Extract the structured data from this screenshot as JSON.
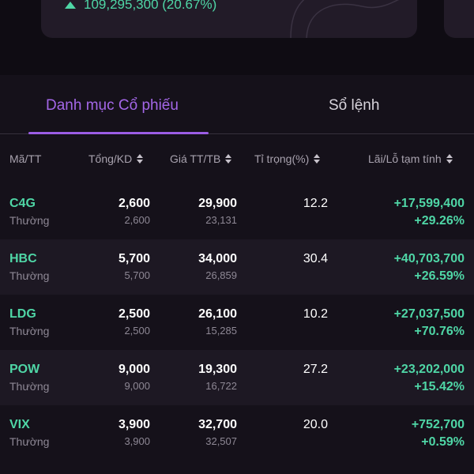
{
  "summary": {
    "value_text": "109,295,300 (20.67%)"
  },
  "tabs": [
    {
      "label": "Danh mục Cổ phiếu",
      "active": true
    },
    {
      "label": "Sổ lệnh",
      "active": false
    }
  ],
  "table": {
    "headers": {
      "code": "Mã/TT",
      "qty": "Tổng/KD",
      "price": "Giá TT/TB",
      "weight": "Tỉ trọng(%)",
      "pl": "Lãi/Lỗ tạm tính"
    },
    "rows": [
      {
        "code": "C4G",
        "type": "Thường",
        "qty_total": "2,600",
        "qty_avail": "2,600",
        "price_mkt": "29,900",
        "price_avg": "23,131",
        "weight": "12.2",
        "pl_value": "+17,599,400",
        "pl_pct": "+29.26%"
      },
      {
        "code": "HBC",
        "type": "Thường",
        "qty_total": "5,700",
        "qty_avail": "5,700",
        "price_mkt": "34,000",
        "price_avg": "26,859",
        "weight": "30.4",
        "pl_value": "+40,703,700",
        "pl_pct": "+26.59%"
      },
      {
        "code": "LDG",
        "type": "Thường",
        "qty_total": "2,500",
        "qty_avail": "2,500",
        "price_mkt": "26,100",
        "price_avg": "15,285",
        "weight": "10.2",
        "pl_value": "+27,037,500",
        "pl_pct": "+70.76%"
      },
      {
        "code": "POW",
        "type": "Thường",
        "qty_total": "9,000",
        "qty_avail": "9,000",
        "price_mkt": "19,300",
        "price_avg": "16,722",
        "weight": "27.2",
        "pl_value": "+23,202,000",
        "pl_pct": "+15.42%"
      },
      {
        "code": "VIX",
        "type": "Thường",
        "qty_total": "3,900",
        "qty_avail": "3,900",
        "price_mkt": "32,700",
        "price_avg": "32,507",
        "weight": "20.0",
        "pl_value": "+752,700",
        "pl_pct": "+0.59%"
      }
    ]
  },
  "colors": {
    "accent": "#9b5de5",
    "gain": "#4fd6a6",
    "background": "#0f0c13"
  }
}
